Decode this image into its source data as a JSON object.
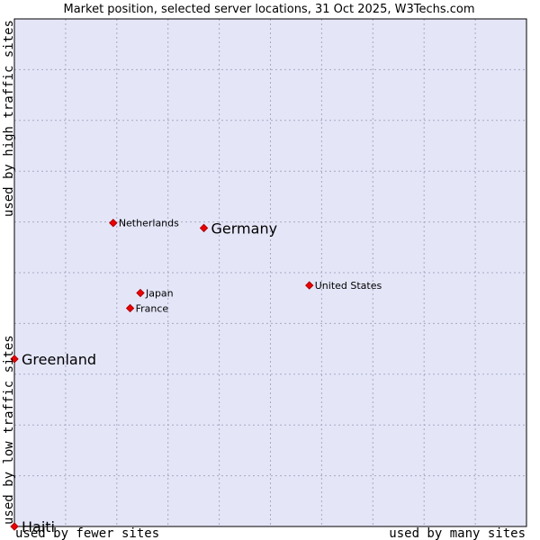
{
  "chart_data": {
    "type": "scatter",
    "title": "Market position, selected server locations, 31 Oct 2025, W3Techs.com",
    "xlabel_low": "used by fewer sites",
    "xlabel_high": "used by many sites",
    "ylabel_low": "used by low traffic sites",
    "ylabel_high": "used by high traffic sites",
    "xlim": [
      0,
      100
    ],
    "ylim": [
      0,
      100
    ],
    "grid": true,
    "colors": {
      "plot_background": "#e4e6f8",
      "grid": "#a8a8c0",
      "border": "#000000",
      "marker_fill": "#ee0000",
      "marker_stroke": "#aa0000"
    },
    "points": [
      {
        "label": "Netherlands",
        "x": 19.3,
        "y": 59.8,
        "emphasis": false
      },
      {
        "label": "Germany",
        "x": 37.0,
        "y": 58.8,
        "emphasis": true
      },
      {
        "label": "United States",
        "x": 57.6,
        "y": 47.5,
        "emphasis": false
      },
      {
        "label": "Japan",
        "x": 24.6,
        "y": 46.0,
        "emphasis": false
      },
      {
        "label": "France",
        "x": 22.6,
        "y": 43.0,
        "emphasis": false
      },
      {
        "label": "Greenland",
        "x": 0.0,
        "y": 33.0,
        "emphasis": true
      },
      {
        "label": "Haiti",
        "x": 0.0,
        "y": 0.0,
        "emphasis": true
      }
    ]
  }
}
